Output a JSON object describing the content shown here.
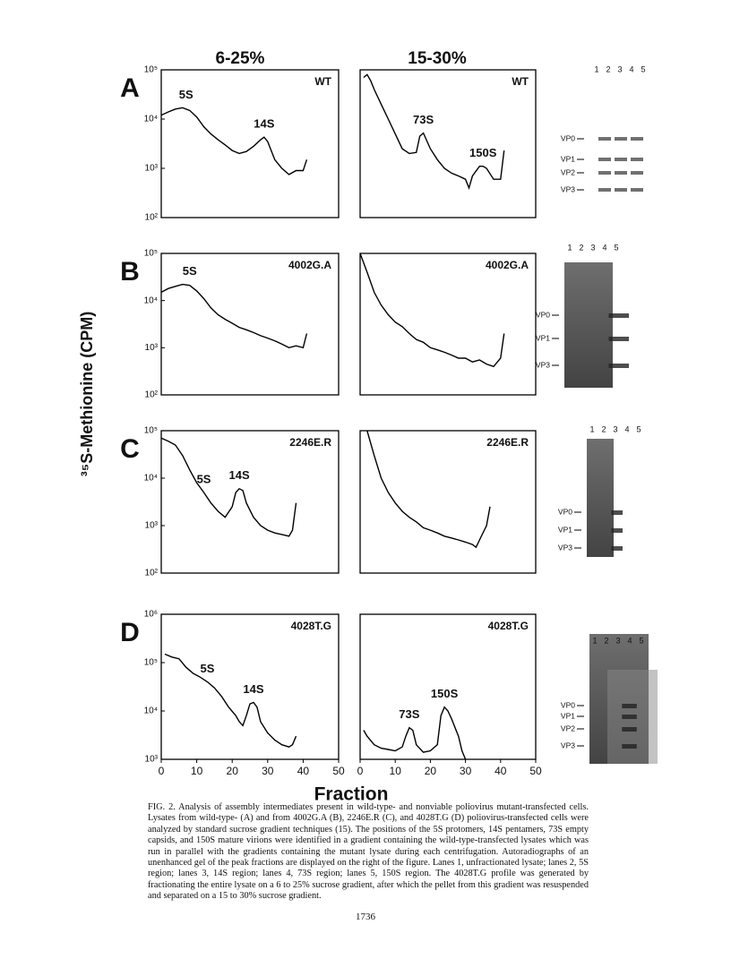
{
  "column_headers": [
    "6-25%",
    "15-30%"
  ],
  "panel_labels": [
    "A",
    "B",
    "C",
    "D"
  ],
  "y_axis_label": "³⁵S-Methionine (CPM)",
  "x_axis_label": "Fraction",
  "gels": [
    {
      "lanes": [
        "1",
        "2",
        "3",
        "4",
        "5"
      ],
      "bands": [
        "VP0",
        "VP1",
        "VP2",
        "VP3"
      ]
    },
    {
      "lanes": [
        "1",
        "2",
        "3",
        "4",
        "5"
      ],
      "bands": [
        "VP0",
        "VP1",
        "VP3"
      ]
    },
    {
      "lanes": [
        "1",
        "2",
        "3",
        "4",
        "5"
      ],
      "bands": [
        "VP0",
        "VP1",
        "VP3"
      ]
    },
    {
      "lanes": [
        "1",
        "2",
        "3",
        "4",
        "5"
      ],
      "bands": [
        "VP0",
        "VP1",
        "VP2",
        "VP3"
      ]
    }
  ],
  "chart_data": [
    {
      "type": "line",
      "title": "WT",
      "log_scale": true,
      "color": "#000000",
      "xlim": [
        0,
        50
      ],
      "ylim": [
        100,
        100000
      ],
      "yticks": [
        {
          "value": 100,
          "label": "10²"
        },
        {
          "value": 1000,
          "label": "10³"
        },
        {
          "value": 10000,
          "label": "10⁴"
        },
        {
          "value": 100000,
          "label": "10⁵"
        }
      ],
      "x": [
        0,
        2,
        4,
        6,
        8,
        10,
        12,
        14,
        16,
        18,
        20,
        22,
        24,
        26,
        28,
        29,
        30,
        32,
        34,
        36,
        38,
        40,
        41
      ],
      "values": [
        12000,
        14000,
        16000,
        17000,
        15000,
        11000,
        7000,
        5000,
        3800,
        3000,
        2300,
        2000,
        2200,
        2800,
        3800,
        4300,
        3500,
        1500,
        1000,
        750,
        900,
        900,
        1500
      ],
      "annotations": [
        {
          "text": "5S",
          "x": 7,
          "y": 17000
        },
        {
          "text": "14S",
          "x": 29,
          "y": 4300
        }
      ]
    },
    {
      "type": "line",
      "title": "WT",
      "log_scale": true,
      "color": "#000000",
      "xlim": [
        0,
        50
      ],
      "ylim": [
        100,
        100000
      ],
      "x": [
        1,
        2,
        3,
        4,
        6,
        8,
        10,
        12,
        14,
        16,
        17,
        18,
        20,
        22,
        24,
        26,
        28,
        30,
        31,
        32,
        34,
        35,
        36,
        38,
        40,
        41
      ],
      "values": [
        70000,
        80000,
        60000,
        40000,
        20000,
        10000,
        5000,
        2500,
        2000,
        2100,
        4500,
        5200,
        2500,
        1500,
        1000,
        800,
        700,
        600,
        400,
        700,
        1100,
        1100,
        1000,
        600,
        600,
        2300
      ],
      "annotations": [
        {
          "text": "73S",
          "x": 18,
          "y": 5200
        },
        {
          "text": "150S",
          "x": 35,
          "y": 1100
        }
      ]
    },
    {
      "type": "line",
      "title": "4002G.A",
      "log_scale": true,
      "color": "#000000",
      "xlim": [
        0,
        50
      ],
      "ylim": [
        100,
        100000
      ],
      "yticks": [
        {
          "value": 100,
          "label": "10²"
        },
        {
          "value": 1000,
          "label": "10³"
        },
        {
          "value": 10000,
          "label": "10⁴"
        },
        {
          "value": 100000,
          "label": "10⁵"
        }
      ],
      "x": [
        0,
        2,
        4,
        6,
        8,
        10,
        12,
        14,
        16,
        18,
        20,
        22,
        24,
        26,
        28,
        30,
        32,
        34,
        36,
        38,
        40,
        41
      ],
      "values": [
        15000,
        18000,
        20000,
        22000,
        21000,
        16000,
        11000,
        7000,
        5000,
        4000,
        3300,
        2700,
        2400,
        2100,
        1800,
        1600,
        1400,
        1200,
        1000,
        1100,
        1000,
        2000
      ],
      "annotations": [
        {
          "text": "5S",
          "x": 8,
          "y": 22000
        }
      ]
    },
    {
      "type": "line",
      "title": "4002G.A",
      "log_scale": true,
      "color": "#000000",
      "xlim": [
        0,
        50
      ],
      "ylim": [
        100,
        100000
      ],
      "x": [
        0,
        2,
        4,
        6,
        8,
        10,
        12,
        14,
        16,
        18,
        20,
        22,
        24,
        26,
        28,
        30,
        32,
        34,
        36,
        38,
        40,
        41
      ],
      "values": [
        100000,
        40000,
        15000,
        8000,
        5000,
        3500,
        2800,
        2000,
        1500,
        1300,
        1000,
        900,
        800,
        700,
        600,
        600,
        500,
        550,
        450,
        400,
        600,
        2000
      ],
      "annotations": []
    },
    {
      "type": "line",
      "title": "2246E.R",
      "log_scale": true,
      "color": "#000000",
      "xlim": [
        0,
        50
      ],
      "ylim": [
        100,
        100000
      ],
      "yticks": [
        {
          "value": 100,
          "label": "10²"
        },
        {
          "value": 1000,
          "label": "10³"
        },
        {
          "value": 10000,
          "label": "10⁴"
        },
        {
          "value": 100000,
          "label": "10⁵"
        }
      ],
      "x": [
        0,
        2,
        4,
        6,
        8,
        10,
        12,
        14,
        16,
        18,
        20,
        21,
        22,
        23,
        24,
        26,
        28,
        30,
        32,
        34,
        36,
        37,
        38
      ],
      "values": [
        70000,
        60000,
        50000,
        30000,
        15000,
        8000,
        5000,
        3000,
        2000,
        1500,
        2500,
        5000,
        6000,
        5500,
        3000,
        1500,
        1000,
        800,
        700,
        650,
        600,
        800,
        3000
      ],
      "annotations": [
        {
          "text": "5S",
          "x": 12,
          "y": 5000
        },
        {
          "text": "14S",
          "x": 22,
          "y": 6000
        }
      ]
    },
    {
      "type": "line",
      "title": "2246E.R",
      "log_scale": true,
      "color": "#000000",
      "xlim": [
        0,
        50
      ],
      "ylim": [
        100,
        100000
      ],
      "x": [
        2,
        4,
        6,
        8,
        10,
        12,
        14,
        16,
        18,
        20,
        22,
        24,
        26,
        28,
        30,
        32,
        33,
        34,
        36,
        37
      ],
      "values": [
        100000,
        30000,
        10000,
        5000,
        3000,
        2000,
        1500,
        1200,
        900,
        800,
        700,
        600,
        550,
        500,
        450,
        400,
        350,
        500,
        1000,
        2500
      ],
      "annotations": []
    },
    {
      "type": "line",
      "title": "4028T.G",
      "log_scale": true,
      "color": "#000000",
      "xlim": [
        0,
        50
      ],
      "ylim": [
        1000,
        1000000
      ],
      "xticks": [
        0,
        10,
        20,
        30,
        40,
        50
      ],
      "yticks": [
        {
          "value": 1000,
          "label": "10³"
        },
        {
          "value": 10000,
          "label": "10⁴"
        },
        {
          "value": 100000,
          "label": "10⁵"
        },
        {
          "value": 1000000,
          "label": "10⁶"
        }
      ],
      "x": [
        1,
        3,
        5,
        7,
        9,
        11,
        13,
        15,
        17,
        19,
        21,
        22,
        23,
        24,
        25,
        26,
        27,
        28,
        30,
        32,
        34,
        36,
        37,
        38
      ],
      "values": [
        150000,
        130000,
        120000,
        80000,
        60000,
        50000,
        40000,
        30000,
        20000,
        12000,
        8000,
        6000,
        5000,
        8000,
        14000,
        15000,
        12000,
        6000,
        3500,
        2500,
        2000,
        1800,
        2000,
        3000
      ],
      "annotations": [
        {
          "text": "5S",
          "x": 13,
          "y": 40000
        },
        {
          "text": "14S",
          "x": 26,
          "y": 15000
        }
      ]
    },
    {
      "type": "line",
      "title": "4028T.G",
      "log_scale": true,
      "color": "#000000",
      "xlim": [
        0,
        50
      ],
      "ylim": [
        1000,
        1000000
      ],
      "xticks": [
        0,
        10,
        20,
        30,
        40,
        50
      ],
      "x": [
        1,
        2,
        4,
        6,
        8,
        10,
        12,
        13,
        14,
        15,
        16,
        18,
        20,
        22,
        23,
        24,
        25,
        26,
        28,
        29,
        30
      ],
      "values": [
        4000,
        3000,
        2000,
        1700,
        1600,
        1500,
        1800,
        3000,
        4500,
        4000,
        2000,
        1400,
        1500,
        2000,
        8000,
        12000,
        10000,
        7000,
        3000,
        1500,
        1000
      ],
      "annotations": [
        {
          "text": "73S",
          "x": 14,
          "y": 4500
        },
        {
          "text": "150S",
          "x": 24,
          "y": 12000
        }
      ]
    }
  ],
  "caption": "FIG. 2. Analysis of assembly intermediates present in wild-type- and nonviable poliovirus mutant-transfected cells. Lysates from wild-type- (A) and from 4002G.A (B), 2246E.R (C), and 4028T.G (D) poliovirus-transfected cells were analyzed by standard sucrose gradient techniques (15). The positions of the 5S protomers, 14S pentamers, 73S empty capsids, and 150S mature virions were identified in a gradient containing the wild-type-transfected lysates which was run in parallel with the gradients containing the mutant lysate during each centrifugation. Autoradiographs of an unenhanced gel of the peak fractions are displayed on the right of the figure. Lanes 1, unfractionated lysate; lanes 2, 5S region; lanes 3, 14S region; lanes 4, 73S region; lanes 5, 150S region. The 4028T.G profile was generated by fractionating the entire lysate on a 6 to 25% sucrose gradient, after which the pellet from this gradient was resuspended and separated on a 15 to 30% sucrose gradient.",
  "page_number": "1736"
}
